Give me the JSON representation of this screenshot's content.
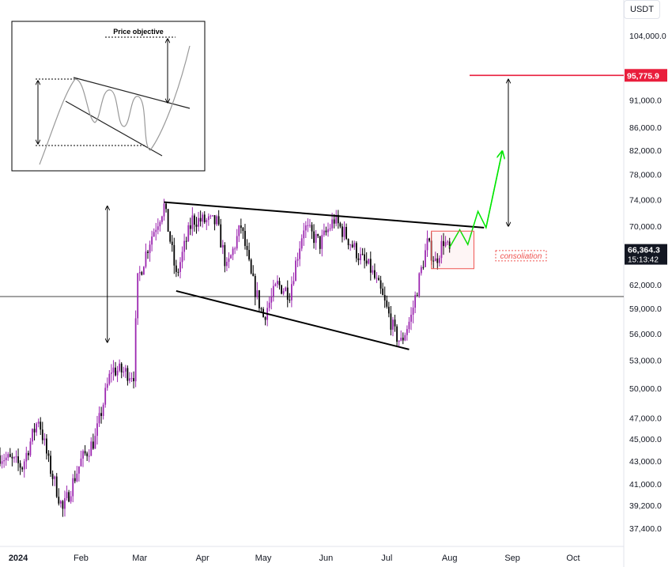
{
  "currency": "USDT",
  "chart_data": {
    "type": "candlestick",
    "y_scale": "log",
    "ylim": [
      36000,
      112000
    ],
    "x_range": [
      "2023-12-23",
      "2024-10-26"
    ],
    "price_axis_labels": [
      "104,000.0",
      "95,775.9",
      "91,000.0",
      "86,000.0",
      "82,000.0",
      "78,000.0",
      "74,000.0",
      "70,000.0",
      "66,364.3",
      "62,000.0",
      "59,000.0",
      "56,000.0",
      "53,000.0",
      "50,000.0",
      "47,000.0",
      "45,000.0",
      "43,000.0",
      "41,000.0",
      "39,200.0",
      "37,400.0"
    ],
    "price_axis_values": [
      104000,
      91000,
      86000,
      82000,
      78000,
      74000,
      70000,
      62000,
      59000,
      56000,
      53000,
      50000,
      47000,
      45000,
      43000,
      41000,
      39200,
      37400
    ],
    "time_labels": [
      {
        "date": "2024-01-01",
        "label": "2024"
      },
      {
        "date": "2024-02-01",
        "label": "Feb"
      },
      {
        "date": "2024-03-01",
        "label": "Mar"
      },
      {
        "date": "2024-04-01",
        "label": "Apr"
      },
      {
        "date": "2024-05-01",
        "label": "May"
      },
      {
        "date": "2024-06-01",
        "label": "Jun"
      },
      {
        "date": "2024-07-01",
        "label": "Jul"
      },
      {
        "date": "2024-08-01",
        "label": "Aug"
      },
      {
        "date": "2024-09-01",
        "label": "Sep"
      },
      {
        "date": "2024-10-01",
        "label": "Oct"
      }
    ],
    "current_price": {
      "value": 66364.3,
      "label": "66,364.3",
      "countdown": "15:13:42"
    },
    "target": {
      "value": 95775.9,
      "label": "95,775.9"
    },
    "colors": {
      "up": "#9c27b0",
      "down": "#000000",
      "target": "#e91e3c",
      "projection": "#00e600",
      "annotation": "#ef5350"
    },
    "support_level": 60500,
    "price_path": [
      {
        "date": "2023-12-23",
        "price": 43500
      },
      {
        "date": "2024-01-03",
        "price": 42500
      },
      {
        "date": "2024-01-11",
        "price": 47000
      },
      {
        "date": "2024-01-16",
        "price": 42800
      },
      {
        "date": "2024-01-23",
        "price": 38800
      },
      {
        "date": "2024-02-01",
        "price": 43000
      },
      {
        "date": "2024-02-08",
        "price": 45000
      },
      {
        "date": "2024-02-16",
        "price": 52000
      },
      {
        "date": "2024-02-27",
        "price": 51500
      },
      {
        "date": "2024-02-29",
        "price": 62500
      },
      {
        "date": "2024-03-06",
        "price": 68000
      },
      {
        "date": "2024-03-13",
        "price": 73000
      },
      {
        "date": "2024-03-19",
        "price": 63000
      },
      {
        "date": "2024-03-27",
        "price": 71000
      },
      {
        "date": "2024-04-08",
        "price": 70500
      },
      {
        "date": "2024-04-13",
        "price": 64000
      },
      {
        "date": "2024-04-20",
        "price": 70000
      },
      {
        "date": "2024-04-25",
        "price": 63000
      },
      {
        "date": "2024-05-01",
        "price": 58000
      },
      {
        "date": "2024-05-08",
        "price": 62000
      },
      {
        "date": "2024-05-14",
        "price": 61000
      },
      {
        "date": "2024-05-21",
        "price": 70000
      },
      {
        "date": "2024-05-29",
        "price": 67500
      },
      {
        "date": "2024-06-05",
        "price": 71000
      },
      {
        "date": "2024-06-10",
        "price": 69000
      },
      {
        "date": "2024-06-18",
        "price": 65500
      },
      {
        "date": "2024-06-23",
        "price": 64000
      },
      {
        "date": "2024-06-28",
        "price": 61000
      },
      {
        "date": "2024-07-05",
        "price": 56000
      },
      {
        "date": "2024-07-08",
        "price": 55000
      },
      {
        "date": "2024-07-13",
        "price": 58000
      },
      {
        "date": "2024-07-21",
        "price": 67500
      },
      {
        "date": "2024-07-25",
        "price": 65000
      },
      {
        "date": "2024-07-29",
        "price": 68000
      },
      {
        "date": "2024-08-01",
        "price": 66364
      }
    ],
    "pattern_lines": [
      {
        "name": "upper-trendline",
        "from": {
          "date": "2024-03-13",
          "price": 73600
        },
        "to": {
          "date": "2024-08-18",
          "price": 69800
        }
      },
      {
        "name": "lower-trendline",
        "from": {
          "date": "2024-03-19",
          "price": 61200
        },
        "to": {
          "date": "2024-07-12",
          "price": 54200
        }
      }
    ],
    "measured_moves": [
      {
        "name": "flagpole-arrow",
        "date": "2024-02-14",
        "from": 55000,
        "to": 73000
      },
      {
        "name": "target-arrow",
        "date": "2024-08-30",
        "from": 70000,
        "to": 95000
      }
    ],
    "projection": [
      {
        "date": "2024-08-01",
        "price": 67000
      },
      {
        "date": "2024-08-06",
        "price": 69500
      },
      {
        "date": "2024-08-10",
        "price": 67400
      },
      {
        "date": "2024-08-15",
        "price": 72200
      },
      {
        "date": "2024-08-19",
        "price": 69800
      },
      {
        "date": "2024-08-27",
        "price": 81800
      }
    ],
    "consolidation": {
      "label": "consoliation",
      "from": {
        "date": "2024-07-23",
        "price": 69300
      },
      "to": {
        "date": "2024-08-13",
        "price": 64100
      }
    },
    "inset": {
      "title": "Price objective"
    }
  }
}
